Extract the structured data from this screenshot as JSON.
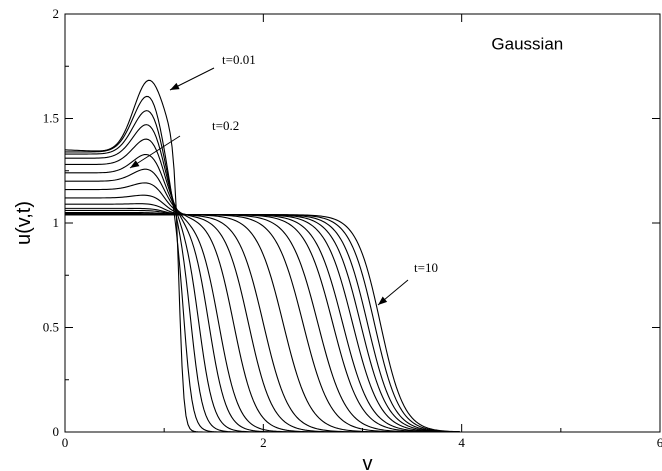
{
  "chart_data": {
    "type": "line",
    "title": "",
    "legend_label": "Gaussian",
    "xlabel": "v",
    "ylabel": "u(v,t)",
    "xlim": [
      0,
      6
    ],
    "ylim": [
      0,
      2
    ],
    "x_ticks": [
      "0",
      "2",
      "4",
      "6"
    ],
    "y_ticks": [
      "0",
      "0.5",
      "1",
      "1.5",
      "2"
    ],
    "grid": false,
    "annotations": [
      {
        "text": "t=0.01",
        "points_to": [
          0.8,
          1.6
        ]
      },
      {
        "text": "t=0.2",
        "points_to": [
          0.62,
          1.27
        ]
      },
      {
        "text": "t=10",
        "points_to": [
          3.1,
          0.6
        ]
      }
    ],
    "family": {
      "initial_profile": {
        "shape": "gaussian-like bump",
        "plateau": 1.35,
        "peak": 1.7,
        "peak_v": 0.85,
        "drop_v": 1.15
      },
      "equilibrium_level": 1.04,
      "crossing_point": [
        1.0,
        1.04
      ],
      "front_positions_v": [
        1.15,
        1.2,
        1.27,
        1.35,
        1.45,
        1.55,
        1.7,
        1.85,
        2.0,
        2.2,
        2.4,
        2.55,
        2.7,
        2.8,
        2.9,
        2.98,
        3.05,
        3.12,
        3.18
      ],
      "left_levels": [
        1.35,
        1.34,
        1.33,
        1.31,
        1.28,
        1.24,
        1.2,
        1.16,
        1.12,
        1.09,
        1.07,
        1.06,
        1.05,
        1.045,
        1.04,
        1.04,
        1.04,
        1.04,
        1.04
      ]
    }
  }
}
